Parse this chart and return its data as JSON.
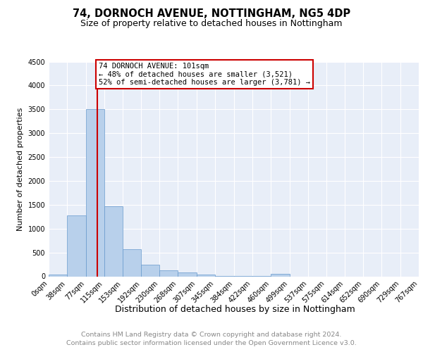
{
  "title1": "74, DORNOCH AVENUE, NOTTINGHAM, NG5 4DP",
  "title2": "Size of property relative to detached houses in Nottingham",
  "xlabel": "Distribution of detached houses by size in Nottingham",
  "ylabel": "Number of detached properties",
  "bin_edges": [
    0,
    38,
    77,
    115,
    153,
    192,
    230,
    268,
    307,
    345,
    384,
    422,
    460,
    499,
    537,
    575,
    614,
    652,
    690,
    729,
    767
  ],
  "bar_heights": [
    38,
    1270,
    3500,
    1470,
    570,
    245,
    130,
    80,
    40,
    8,
    5,
    5,
    50,
    0,
    0,
    0,
    0,
    0,
    0,
    0
  ],
  "bar_color": "#b8d0eb",
  "bar_edge_color": "#6699cc",
  "property_size": 101,
  "vline_color": "#cc0000",
  "ylim_max": 4500,
  "yticks": [
    0,
    500,
    1000,
    1500,
    2000,
    2500,
    3000,
    3500,
    4000,
    4500
  ],
  "annotation_line1": "74 DORNOCH AVENUE: 101sqm",
  "annotation_line2": "← 48% of detached houses are smaller (3,521)",
  "annotation_line3": "52% of semi-detached houses are larger (3,781) →",
  "annotation_box_edgecolor": "#cc0000",
  "footer1": "Contains HM Land Registry data © Crown copyright and database right 2024.",
  "footer2": "Contains public sector information licensed under the Open Government Licence v3.0.",
  "bg_color": "#e8eef8",
  "grid_color": "#ffffff",
  "title1_fontsize": 10.5,
  "title2_fontsize": 9,
  "xlabel_fontsize": 9,
  "ylabel_fontsize": 8,
  "annot_fontsize": 7.5,
  "footer_fontsize": 6.8,
  "tick_fontsize": 7
}
